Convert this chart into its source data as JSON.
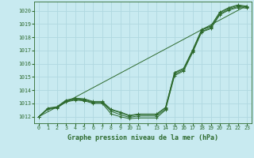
{
  "title": "Graphe pression niveau de la mer (hPa)",
  "background_color": "#c8eaf0",
  "grid_color": "#b0d8e0",
  "line_color": "#2d6a2d",
  "xlim": [
    -0.5,
    23.5
  ],
  "ylim": [
    1011.5,
    1020.7
  ],
  "yticks": [
    1012,
    1013,
    1014,
    1015,
    1016,
    1017,
    1018,
    1019,
    1020
  ],
  "xtick_positions": [
    0,
    1,
    2,
    3,
    4,
    5,
    6,
    7,
    8,
    9,
    10,
    11,
    12,
    13,
    14,
    15,
    16,
    17,
    18,
    19,
    20,
    21,
    22,
    23
  ],
  "xtick_labels": [
    "0",
    "1",
    "2",
    "3",
    "4",
    "5",
    "6",
    "7",
    "8",
    "9",
    "10",
    "11",
    "",
    "13",
    "14",
    "15",
    "16",
    "17",
    "18",
    "19",
    "20",
    "21",
    "22",
    "23"
  ],
  "series_straight": {
    "x": [
      0,
      23
    ],
    "y": [
      1012.0,
      1020.4
    ]
  },
  "series1": {
    "x": [
      0,
      1,
      2,
      3,
      4,
      5,
      6,
      7,
      8,
      9,
      10,
      11,
      13,
      14,
      15,
      16,
      17,
      18,
      19,
      20,
      21,
      22,
      23
    ],
    "y": [
      1012.0,
      1012.6,
      1012.7,
      1013.2,
      1013.35,
      1013.3,
      1013.1,
      1013.1,
      1012.5,
      1012.3,
      1012.05,
      1012.15,
      1012.15,
      1012.65,
      1015.3,
      1015.6,
      1017.0,
      1018.55,
      1018.8,
      1019.85,
      1020.2,
      1020.4,
      1020.3
    ]
  },
  "series2": {
    "x": [
      0,
      1,
      2,
      3,
      4,
      5,
      6,
      7,
      8,
      9,
      10,
      11,
      13,
      14,
      15,
      16,
      17,
      18,
      19,
      20,
      21,
      22,
      23
    ],
    "y": [
      1012.0,
      1012.65,
      1012.75,
      1013.25,
      1013.4,
      1013.35,
      1013.15,
      1013.15,
      1012.55,
      1012.35,
      1012.1,
      1012.2,
      1012.2,
      1012.7,
      1015.35,
      1015.65,
      1017.05,
      1018.6,
      1018.85,
      1019.9,
      1020.25,
      1020.45,
      1020.35
    ]
  },
  "series3": {
    "x": [
      0,
      1,
      2,
      3,
      4,
      5,
      6,
      7,
      8,
      9,
      10,
      11,
      13,
      14,
      15,
      16,
      17,
      18,
      19,
      20,
      21,
      22,
      23
    ],
    "y": [
      1012.0,
      1012.55,
      1012.65,
      1013.1,
      1013.25,
      1013.2,
      1013.0,
      1013.0,
      1012.2,
      1012.0,
      1011.85,
      1011.9,
      1011.9,
      1012.5,
      1015.1,
      1015.45,
      1016.85,
      1018.4,
      1018.65,
      1019.7,
      1020.05,
      1020.25,
      1020.2
    ]
  },
  "series4": {
    "x": [
      0,
      1,
      2,
      3,
      4,
      5,
      6,
      7,
      8,
      9,
      10,
      11,
      13,
      14,
      15,
      16,
      17,
      18,
      19,
      20,
      21,
      22,
      23
    ],
    "y": [
      1012.0,
      1012.6,
      1012.7,
      1013.15,
      1013.3,
      1013.25,
      1013.05,
      1013.05,
      1012.4,
      1012.15,
      1011.95,
      1012.05,
      1012.05,
      1012.55,
      1015.2,
      1015.52,
      1016.92,
      1018.45,
      1018.7,
      1019.75,
      1020.12,
      1020.32,
      1020.27
    ]
  }
}
